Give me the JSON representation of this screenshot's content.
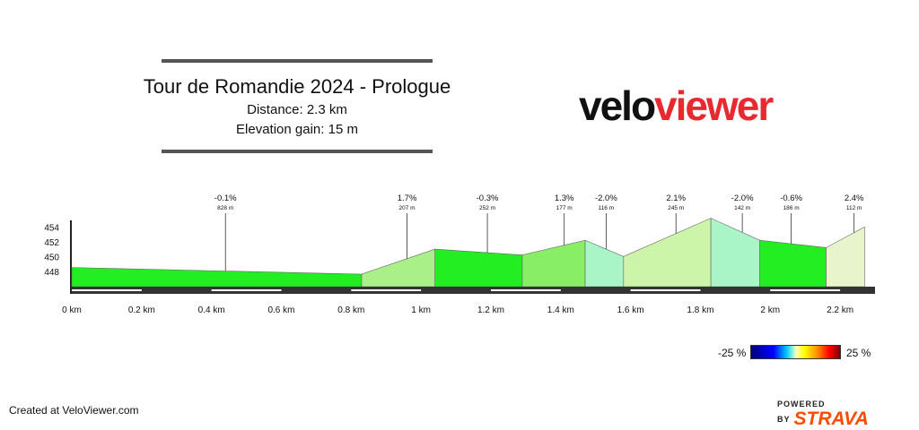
{
  "header": {
    "title": "Tour de Romandie 2024 - Prologue",
    "distance": "Distance: 2.3 km",
    "elevation_gain": "Elevation gain: 15 m"
  },
  "logo": {
    "part1": "velo",
    "part2": "viewer"
  },
  "footer": {
    "created": "Created at VeloViewer.com",
    "powered": "POWERED BY",
    "brand": "STRAVA"
  },
  "legend": {
    "min": "-25 %",
    "max": "25 %"
  },
  "chart_data": {
    "type": "area",
    "xlabel": "",
    "ylabel": "",
    "x_ticks": [
      "0 km",
      "0.2 km",
      "0.4 km",
      "0.6 km",
      "0.8 km",
      "1 km",
      "1.2 km",
      "1.4 km",
      "1.6 km",
      "1.8 km",
      "2 km",
      "2.2 km"
    ],
    "y_ticks": [
      448,
      450,
      452,
      454
    ],
    "xlim": [
      0,
      2.3
    ],
    "ylim": [
      446,
      455
    ],
    "segments": [
      {
        "x0": 0.0,
        "x1": 0.83,
        "y0": 448.6,
        "y1": 447.7,
        "gradient": "-0.1%",
        "length": "828 m",
        "label_x": 0.44,
        "color": "#22ee22"
      },
      {
        "x0": 0.83,
        "x1": 1.04,
        "y0": 447.7,
        "y1": 451.1,
        "gradient": "1.7%",
        "length": "207 m",
        "label_x": 0.96,
        "color": "#aaf088"
      },
      {
        "x0": 1.04,
        "x1": 1.29,
        "y0": 451.1,
        "y1": 450.3,
        "gradient": "-0.3%",
        "length": "252 m",
        "label_x": 1.19,
        "color": "#22ee22"
      },
      {
        "x0": 1.29,
        "x1": 1.47,
        "y0": 450.3,
        "y1": 452.3,
        "gradient": "1.3%",
        "length": "177 m",
        "label_x": 1.41,
        "color": "#88ee66"
      },
      {
        "x0": 1.47,
        "x1": 1.58,
        "y0": 452.3,
        "y1": 450.1,
        "gradient": "-2.0%",
        "length": "116 m",
        "label_x": 1.53,
        "color": "#aaf5c8"
      },
      {
        "x0": 1.58,
        "x1": 1.83,
        "y0": 450.1,
        "y1": 455.3,
        "gradient": "2.1%",
        "length": "245 m",
        "label_x": 1.73,
        "color": "#ccf5aa"
      },
      {
        "x0": 1.83,
        "x1": 1.97,
        "y0": 455.3,
        "y1": 452.3,
        "gradient": "-2.0%",
        "length": "142 m",
        "label_x": 1.92,
        "color": "#aaf5c8"
      },
      {
        "x0": 1.97,
        "x1": 2.16,
        "y0": 452.3,
        "y1": 451.3,
        "gradient": "-0.6%",
        "length": "186 m",
        "label_x": 2.06,
        "color": "#22ee22"
      },
      {
        "x0": 2.16,
        "x1": 2.27,
        "y0": 451.3,
        "y1": 454.1,
        "gradient": "2.4%",
        "length": "112 m",
        "label_x": 2.24,
        "color": "#e8f5cc"
      }
    ]
  }
}
